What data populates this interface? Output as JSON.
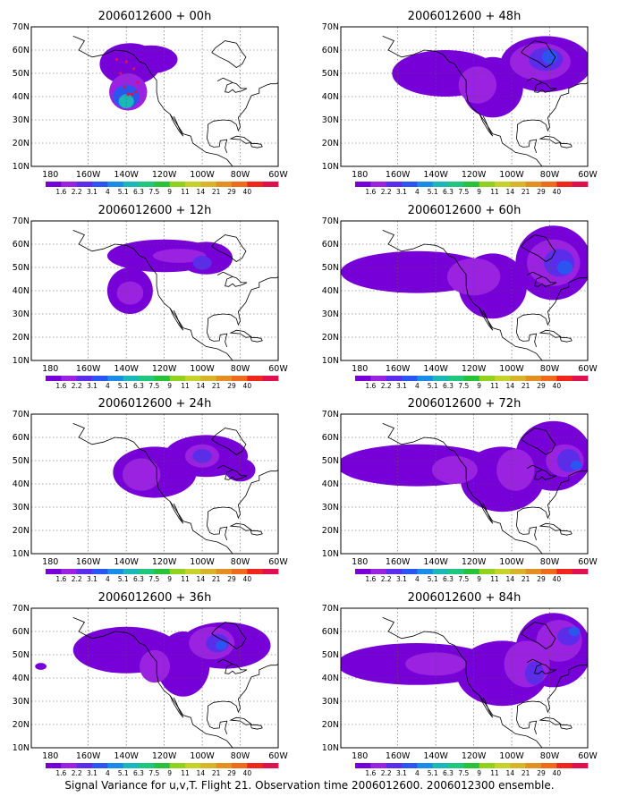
{
  "caption": "Signal Variance for u,v,T. Flight 21. Observation time 2006012600. 2006012300 ensemble.",
  "colors": {
    "levels": [
      "#7700d9",
      "#9a22e0",
      "#5b2dea",
      "#2b55f2",
      "#1a8be6",
      "#1ab8b8",
      "#1ec77e",
      "#27c23a",
      "#8fd11d",
      "#c6d22a",
      "#d8b429",
      "#e48f22",
      "#ef6a1a",
      "#f0251c",
      "#e0104e"
    ]
  },
  "chart_data": [
    {
      "type": "heatmap",
      "title": "2006012600 + 00h",
      "xticks": [
        "180",
        "160W",
        "140W",
        "120W",
        "100W",
        "80W",
        "60W"
      ],
      "yticks": [
        "10N",
        "20N",
        "30N",
        "40N",
        "50N",
        "60N",
        "70N"
      ],
      "xlim": [
        -190,
        -60
      ],
      "ylim": [
        10,
        70
      ],
      "colorbar_labels": [
        "1.6",
        "2.2",
        "3.1",
        "4",
        "5.1",
        "6.3",
        "7.5",
        "9",
        "11",
        "14",
        "21",
        "29",
        "40"
      ],
      "grid": true,
      "observation_track": true,
      "regions": [
        {
          "lon": -138,
          "lat": 54,
          "rx": 16,
          "ry": 9,
          "level": 0
        },
        {
          "lon": -127,
          "lat": 56,
          "rx": 14,
          "ry": 6,
          "level": 0
        },
        {
          "lon": -139,
          "lat": 42,
          "rx": 10,
          "ry": 8,
          "level": 1
        },
        {
          "lon": -140,
          "lat": 40,
          "rx": 7,
          "ry": 5,
          "level": 3
        },
        {
          "lon": -140,
          "lat": 38,
          "rx": 4,
          "ry": 3,
          "level": 5
        }
      ]
    },
    {
      "type": "heatmap",
      "title": "2006012600 + 12h",
      "xticks": [
        "180",
        "160W",
        "140W",
        "120W",
        "100W",
        "80W",
        "60W"
      ],
      "yticks": [
        "10N",
        "20N",
        "30N",
        "40N",
        "50N",
        "60N",
        "70N"
      ],
      "xlim": [
        -190,
        -60
      ],
      "ylim": [
        10,
        70
      ],
      "colorbar_labels": [
        "1.6",
        "2.2",
        "3.1",
        "4",
        "5.1",
        "6.3",
        "7.5",
        "9",
        "11",
        "14",
        "21",
        "29",
        "40"
      ],
      "grid": true,
      "regions": [
        {
          "lon": -138,
          "lat": 40,
          "rx": 12,
          "ry": 10,
          "level": 0
        },
        {
          "lon": -120,
          "lat": 55,
          "rx": 30,
          "ry": 7,
          "level": 0
        },
        {
          "lon": -98,
          "lat": 54,
          "rx": 14,
          "ry": 7,
          "level": 0
        },
        {
          "lon": -138,
          "lat": 39,
          "rx": 7,
          "ry": 5,
          "level": 1
        },
        {
          "lon": -112,
          "lat": 55,
          "rx": 14,
          "ry": 3,
          "level": 1
        },
        {
          "lon": -100,
          "lat": 52,
          "rx": 5,
          "ry": 3,
          "level": 2
        }
      ]
    },
    {
      "type": "heatmap",
      "title": "2006012600 + 24h",
      "xticks": [
        "180",
        "160W",
        "140W",
        "120W",
        "100W",
        "80W",
        "60W"
      ],
      "yticks": [
        "10N",
        "20N",
        "30N",
        "40N",
        "50N",
        "60N",
        "70N"
      ],
      "xlim": [
        -190,
        -60
      ],
      "ylim": [
        10,
        70
      ],
      "colorbar_labels": [
        "1.6",
        "2.2",
        "3.1",
        "4",
        "5.1",
        "6.3",
        "7.5",
        "9",
        "11",
        "14",
        "21",
        "29",
        "40"
      ],
      "grid": true,
      "regions": [
        {
          "lon": -125,
          "lat": 45,
          "rx": 22,
          "ry": 11,
          "level": 0
        },
        {
          "lon": -98,
          "lat": 52,
          "rx": 22,
          "ry": 9,
          "level": 0
        },
        {
          "lon": -80,
          "lat": 46,
          "rx": 8,
          "ry": 5,
          "level": 0
        },
        {
          "lon": -132,
          "lat": 44,
          "rx": 10,
          "ry": 7,
          "level": 1
        },
        {
          "lon": -100,
          "lat": 52,
          "rx": 9,
          "ry": 5,
          "level": 1
        },
        {
          "lon": -100,
          "lat": 52,
          "rx": 5,
          "ry": 3,
          "level": 2
        }
      ]
    },
    {
      "type": "heatmap",
      "title": "2006012600 + 36h",
      "xticks": [
        "180",
        "160W",
        "140W",
        "120W",
        "100W",
        "80W",
        "60W"
      ],
      "yticks": [
        "10N",
        "20N",
        "30N",
        "40N",
        "50N",
        "60N",
        "70N"
      ],
      "xlim": [
        -190,
        -60
      ],
      "ylim": [
        10,
        70
      ],
      "colorbar_labels": [
        "1.6",
        "2.2",
        "3.1",
        "4",
        "5.1",
        "6.3",
        "7.5",
        "9",
        "11",
        "14",
        "21",
        "29",
        "40"
      ],
      "grid": true,
      "regions": [
        {
          "lon": -140,
          "lat": 52,
          "rx": 28,
          "ry": 10,
          "level": 0
        },
        {
          "lon": -110,
          "lat": 46,
          "rx": 14,
          "ry": 14,
          "level": 0
        },
        {
          "lon": -88,
          "lat": 54,
          "rx": 24,
          "ry": 10,
          "level": 0
        },
        {
          "lon": -185,
          "lat": 45,
          "rx": 3,
          "ry": 1.5,
          "level": 0
        },
        {
          "lon": -125,
          "lat": 45,
          "rx": 8,
          "ry": 7,
          "level": 1
        },
        {
          "lon": -95,
          "lat": 55,
          "rx": 12,
          "ry": 7,
          "level": 1
        },
        {
          "lon": -92,
          "lat": 55,
          "rx": 6,
          "ry": 4,
          "level": 2
        },
        {
          "lon": -90,
          "lat": 54,
          "rx": 3,
          "ry": 2,
          "level": 3
        }
      ]
    },
    {
      "type": "heatmap",
      "title": "2006012600 + 48h",
      "xticks": [
        "180",
        "160W",
        "140W",
        "120W",
        "100W",
        "80W",
        "60W"
      ],
      "yticks": [
        "10N",
        "20N",
        "30N",
        "40N",
        "50N",
        "60N",
        "70N"
      ],
      "xlim": [
        -190,
        -60
      ],
      "ylim": [
        10,
        70
      ],
      "colorbar_labels": [
        "1.6",
        "2.2",
        "3.1",
        "4",
        "5.1",
        "6.3",
        "7.5",
        "9",
        "11",
        "14",
        "21",
        "29",
        "40"
      ],
      "grid": true,
      "regions": [
        {
          "lon": -135,
          "lat": 50,
          "rx": 28,
          "ry": 10,
          "level": 0
        },
        {
          "lon": -110,
          "lat": 44,
          "rx": 16,
          "ry": 13,
          "level": 0
        },
        {
          "lon": -82,
          "lat": 54,
          "rx": 24,
          "ry": 12,
          "level": 0
        },
        {
          "lon": -118,
          "lat": 45,
          "rx": 10,
          "ry": 8,
          "level": 1
        },
        {
          "lon": -85,
          "lat": 55,
          "rx": 16,
          "ry": 8,
          "level": 1
        },
        {
          "lon": -82,
          "lat": 56,
          "rx": 9,
          "ry": 5,
          "level": 2
        },
        {
          "lon": -80,
          "lat": 57,
          "rx": 4,
          "ry": 3,
          "level": 3
        }
      ]
    },
    {
      "type": "heatmap",
      "title": "2006012600 + 60h",
      "xticks": [
        "180",
        "160W",
        "140W",
        "120W",
        "100W",
        "80W",
        "60W"
      ],
      "yticks": [
        "10N",
        "20N",
        "30N",
        "40N",
        "50N",
        "60N",
        "70N"
      ],
      "xlim": [
        -190,
        -60
      ],
      "ylim": [
        10,
        70
      ],
      "colorbar_labels": [
        "1.6",
        "2.2",
        "3.1",
        "4",
        "5.1",
        "6.3",
        "7.5",
        "9",
        "11",
        "14",
        "21",
        "29",
        "40"
      ],
      "grid": true,
      "regions": [
        {
          "lon": -150,
          "lat": 48,
          "rx": 40,
          "ry": 9,
          "level": 0
        },
        {
          "lon": -110,
          "lat": 42,
          "rx": 18,
          "ry": 14,
          "level": 0
        },
        {
          "lon": -78,
          "lat": 52,
          "rx": 20,
          "ry": 16,
          "level": 0
        },
        {
          "lon": -120,
          "lat": 46,
          "rx": 14,
          "ry": 8,
          "level": 1
        },
        {
          "lon": -78,
          "lat": 52,
          "rx": 14,
          "ry": 10,
          "level": 1
        },
        {
          "lon": -75,
          "lat": 52,
          "rx": 8,
          "ry": 6,
          "level": 2
        },
        {
          "lon": -72,
          "lat": 50,
          "rx": 4,
          "ry": 3,
          "level": 3
        }
      ]
    },
    {
      "type": "heatmap",
      "title": "2006012600 + 72h",
      "xticks": [
        "180",
        "160W",
        "140W",
        "120W",
        "100W",
        "80W",
        "60W"
      ],
      "yticks": [
        "10N",
        "20N",
        "30N",
        "40N",
        "50N",
        "60N",
        "70N"
      ],
      "xlim": [
        -190,
        -60
      ],
      "ylim": [
        10,
        70
      ],
      "colorbar_labels": [
        "1.6",
        "2.2",
        "3.1",
        "4",
        "5.1",
        "6.3",
        "7.5",
        "9",
        "11",
        "14",
        "21",
        "29",
        "40"
      ],
      "grid": true,
      "regions": [
        {
          "lon": -150,
          "lat": 48,
          "rx": 42,
          "ry": 9,
          "level": 0
        },
        {
          "lon": -105,
          "lat": 42,
          "rx": 22,
          "ry": 14,
          "level": 0
        },
        {
          "lon": -78,
          "lat": 52,
          "rx": 20,
          "ry": 15,
          "level": 0
        },
        {
          "lon": -130,
          "lat": 46,
          "rx": 12,
          "ry": 6,
          "level": 1
        },
        {
          "lon": -98,
          "lat": 46,
          "rx": 10,
          "ry": 9,
          "level": 1
        },
        {
          "lon": -72,
          "lat": 50,
          "rx": 10,
          "ry": 7,
          "level": 1
        },
        {
          "lon": -70,
          "lat": 50,
          "rx": 6,
          "ry": 5,
          "level": 2
        },
        {
          "lon": -66,
          "lat": 48,
          "rx": 3,
          "ry": 2,
          "level": 3
        }
      ]
    },
    {
      "type": "heatmap",
      "title": "2006012600 + 84h",
      "xticks": [
        "180",
        "160W",
        "140W",
        "120W",
        "100W",
        "80W",
        "60W"
      ],
      "yticks": [
        "10N",
        "20N",
        "30N",
        "40N",
        "50N",
        "60N",
        "70N"
      ],
      "xlim": [
        -190,
        -60
      ],
      "ylim": [
        10,
        70
      ],
      "colorbar_labels": [
        "1.6",
        "2.2",
        "3.1",
        "4",
        "5.1",
        "6.3",
        "7.5",
        "9",
        "11",
        "14",
        "21",
        "29",
        "40"
      ],
      "grid": true,
      "regions": [
        {
          "lon": -150,
          "lat": 46,
          "rx": 42,
          "ry": 9,
          "level": 0
        },
        {
          "lon": -105,
          "lat": 42,
          "rx": 24,
          "ry": 14,
          "level": 0
        },
        {
          "lon": -78,
          "lat": 52,
          "rx": 20,
          "ry": 16,
          "level": 0
        },
        {
          "lon": -140,
          "lat": 46,
          "rx": 16,
          "ry": 5,
          "level": 1
        },
        {
          "lon": -92,
          "lat": 46,
          "rx": 12,
          "ry": 10,
          "level": 1
        },
        {
          "lon": -75,
          "lat": 56,
          "rx": 12,
          "ry": 9,
          "level": 1
        },
        {
          "lon": -88,
          "lat": 42,
          "rx": 5,
          "ry": 5,
          "level": 2
        },
        {
          "lon": -70,
          "lat": 58,
          "rx": 6,
          "ry": 4,
          "level": 2
        },
        {
          "lon": -67,
          "lat": 60,
          "rx": 3,
          "ry": 2,
          "level": 3
        }
      ]
    }
  ]
}
